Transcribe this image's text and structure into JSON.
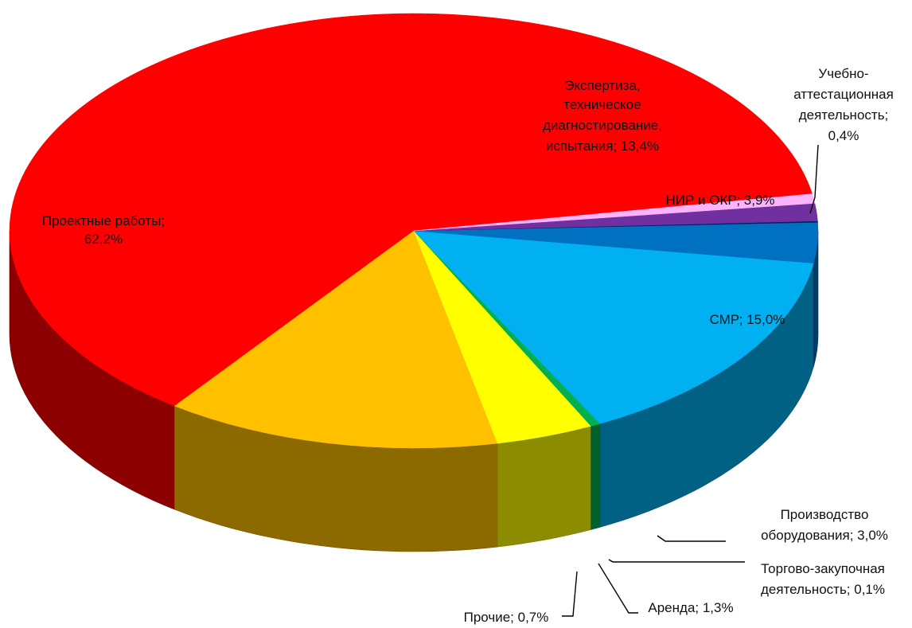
{
  "chart_data": {
    "type": "pie",
    "title": "",
    "style": "3d",
    "slices": [
      {
        "label": "Проектные работы",
        "value": 62.2,
        "text": "62,2%",
        "color": "#ff0000"
      },
      {
        "label": "Экспертиза, техническое диагностирование, испытания",
        "value": 13.4,
        "text": "13,4%",
        "color": "#ffc000"
      },
      {
        "label": "НИР и ОКР",
        "value": 3.9,
        "text": "3,9%",
        "color": "#ffff00"
      },
      {
        "label": "Учебно-аттестационная деятельность",
        "value": 0.4,
        "text": "0,4%",
        "color": "#00b050"
      },
      {
        "label": "СМР",
        "value": 15.0,
        "text": "15,0%",
        "color": "#00b0f0"
      },
      {
        "label": "Производство оборудования",
        "value": 3.0,
        "text": "3,0%",
        "color": "#0070c0"
      },
      {
        "label": "Торгово-закупочная деятельность",
        "value": 0.1,
        "text": "0,1%",
        "color": "#002060"
      },
      {
        "label": "Аренда",
        "value": 1.3,
        "text": "1,3%",
        "color": "#7030a0"
      },
      {
        "label": "Прочие",
        "value": 0.7,
        "text": "0,7%",
        "color": "#ffb3ff"
      }
    ]
  },
  "labels": {
    "proekt_1": "Проектные работы;",
    "proekt_2": "62,2%",
    "ekspert_1": "Экспертиза,",
    "ekspert_2": "техническое",
    "ekspert_3": "диагностирование,",
    "ekspert_4": "испытания; 13,4%",
    "nir": "НИР и ОКР; 3,9%",
    "ucheb_1": "Учебно-",
    "ucheb_2": "аттестационная",
    "ucheb_3": "деятельность;",
    "ucheb_4": "0,4%",
    "smr": "СМР; 15,0%",
    "proizv_1": "Производство",
    "proizv_2": "оборудования; 3,0%",
    "torg_1": "Торгово-закупочная",
    "torg_2": "деятельность; 0,1%",
    "arenda": "Аренда; 1,3%",
    "prochie": "Прочие; 0,7%"
  }
}
